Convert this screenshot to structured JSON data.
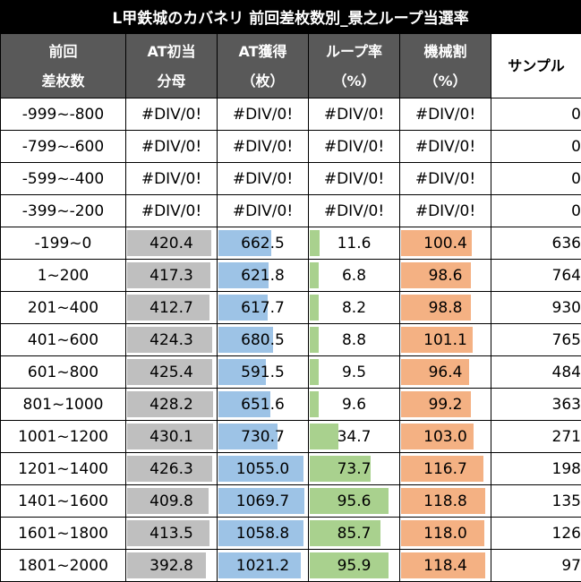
{
  "title": "L甲鉄城のカバネリ 前回差枚数別_景之ループ当選率",
  "headers": [
    [
      "前回",
      "差枚数"
    ],
    [
      "AT初当",
      "分母"
    ],
    [
      "AT獲得",
      "（枚）"
    ],
    [
      "ループ率",
      "（%）"
    ],
    [
      "機械割",
      "（%）"
    ],
    [
      "サンプル"
    ]
  ],
  "rows": [
    {
      "label": "-999~-800",
      "at_denom": "#DIV/0!",
      "at_gain": "#DIV/0!",
      "loop": "#DIV/0!",
      "payout": "#DIV/0!",
      "sample": "0"
    },
    {
      "label": "-799~-600",
      "at_denom": "#DIV/0!",
      "at_gain": "#DIV/0!",
      "loop": "#DIV/0!",
      "payout": "#DIV/0!",
      "sample": "0"
    },
    {
      "label": "-599~-400",
      "at_denom": "#DIV/0!",
      "at_gain": "#DIV/0!",
      "loop": "#DIV/0!",
      "payout": "#DIV/0!",
      "sample": "0"
    },
    {
      "label": "-399~-200",
      "at_denom": "#DIV/0!",
      "at_gain": "#DIV/0!",
      "loop": "#DIV/0!",
      "payout": "#DIV/0!",
      "sample": "0"
    },
    {
      "label": "-199~0",
      "at_denom": "420.4",
      "at_gain": "662.5",
      "loop": "11.6",
      "payout": "100.4",
      "sample": "636"
    },
    {
      "label": "1~200",
      "at_denom": "417.3",
      "at_gain": "621.8",
      "loop": "6.8",
      "payout": "98.6",
      "sample": "764"
    },
    {
      "label": "201~400",
      "at_denom": "412.7",
      "at_gain": "617.7",
      "loop": "8.2",
      "payout": "98.8",
      "sample": "930"
    },
    {
      "label": "401~600",
      "at_denom": "424.3",
      "at_gain": "680.5",
      "loop": "8.8",
      "payout": "101.1",
      "sample": "765"
    },
    {
      "label": "601~800",
      "at_denom": "425.4",
      "at_gain": "591.5",
      "loop": "9.5",
      "payout": "96.4",
      "sample": "484"
    },
    {
      "label": "801~1000",
      "at_denom": "428.2",
      "at_gain": "651.6",
      "loop": "9.6",
      "payout": "99.2",
      "sample": "363"
    },
    {
      "label": "1001~1200",
      "at_denom": "430.1",
      "at_gain": "730.7",
      "loop": "34.7",
      "payout": "103.0",
      "sample": "271"
    },
    {
      "label": "1201~1400",
      "at_denom": "426.3",
      "at_gain": "1055.0",
      "loop": "73.7",
      "payout": "116.7",
      "sample": "198"
    },
    {
      "label": "1401~1600",
      "at_denom": "409.8",
      "at_gain": "1069.7",
      "loop": "95.6",
      "payout": "118.8",
      "sample": "135"
    },
    {
      "label": "1601~1800",
      "at_denom": "413.5",
      "at_gain": "1058.8",
      "loop": "85.7",
      "payout": "118.0",
      "sample": "126"
    },
    {
      "label": "1801~2000",
      "at_denom": "392.8",
      "at_gain": "1021.2",
      "loop": "95.9",
      "payout": "118.4",
      "sample": "97"
    }
  ],
  "colors": {
    "header_bg": "#595959",
    "at_denom_bar": "#bfbfbf",
    "at_gain_bar": "#9dc3e6",
    "loop_bar": "#a9d18e",
    "payout_bar": "#f4b183"
  }
}
